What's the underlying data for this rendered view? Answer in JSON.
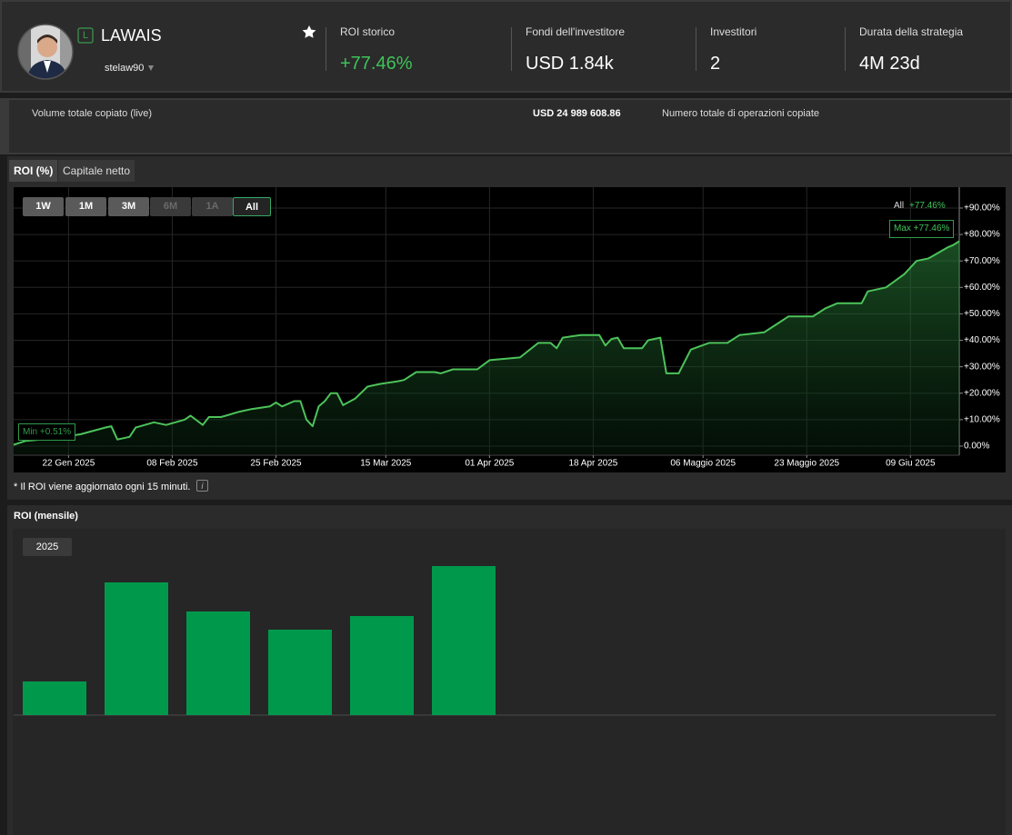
{
  "header": {
    "badge": "L",
    "name": "LAWAIS",
    "username": "stelaw90",
    "stats": [
      {
        "label": "ROI storico",
        "value": "+77.46%"
      },
      {
        "label": "Fondi dell'investitore",
        "value": "USD 1.84k"
      },
      {
        "label": "Investitori",
        "value": "2"
      },
      {
        "label": "Durata della strategia",
        "value": "4M 23d"
      }
    ]
  },
  "summary": {
    "copied_volume_label": "Volume totale copiato (live)",
    "copied_volume": "USD 24 989 608.86",
    "copied_trades_label": "Numero totale di operazioni copiate"
  },
  "tabs": [
    "ROI (%)",
    "Capitale netto"
  ],
  "ranges": [
    "1W",
    "1M",
    "3M",
    "6M",
    "1A",
    "All"
  ],
  "roi_note": "* Il ROI viene aggiornato ogni 15 minuti.",
  "monthly_title": "ROI (mensile)",
  "monthly_year": "2025",
  "chart_data": [
    {
      "type": "line",
      "range_label": "All",
      "range_value": "+77.46%",
      "max_label": "Max +77.46%",
      "min_label": "Min +0.51%",
      "x": [
        "2025-01-13",
        "2025-01-15",
        "2025-01-20",
        "2025-01-24",
        "2025-01-28",
        "2025-01-29",
        "2025-01-30",
        "2025-02-01",
        "2025-02-02",
        "2025-02-05",
        "2025-02-07",
        "2025-02-10",
        "2025-02-11",
        "2025-02-13",
        "2025-02-14",
        "2025-02-16",
        "2025-02-19",
        "2025-02-21",
        "2025-02-24",
        "2025-02-25",
        "2025-02-26",
        "2025-02-28",
        "2025-03-01",
        "2025-03-02",
        "2025-03-03",
        "2025-03-04",
        "2025-03-05",
        "2025-03-06",
        "2025-03-07",
        "2025-03-08",
        "2025-03-10",
        "2025-03-12",
        "2025-03-14",
        "2025-03-17",
        "2025-03-18",
        "2025-03-20",
        "2025-03-23",
        "2025-03-24",
        "2025-03-26",
        "2025-03-30",
        "2025-04-01",
        "2025-04-06",
        "2025-04-09",
        "2025-04-11",
        "2025-04-12",
        "2025-04-13",
        "2025-04-16",
        "2025-04-19",
        "2025-04-20",
        "2025-04-21",
        "2025-04-22",
        "2025-04-23",
        "2025-04-26",
        "2025-04-27",
        "2025-04-29",
        "2025-04-30",
        "2025-05-02",
        "2025-05-04",
        "2025-05-07",
        "2025-05-10",
        "2025-05-12",
        "2025-05-16",
        "2025-05-18",
        "2025-05-20",
        "2025-05-24",
        "2025-05-26",
        "2025-05-28",
        "2025-06-01",
        "2025-06-02",
        "2025-06-05",
        "2025-06-08",
        "2025-06-10",
        "2025-06-12",
        "2025-06-15",
        "2025-06-16",
        "2025-06-17"
      ],
      "series": [
        {
          "color": "#4cc35a",
          "values": [
            0.51,
            2,
            3,
            4.5,
            7,
            7.5,
            2.5,
            3.5,
            7,
            9,
            8,
            10,
            11.5,
            8,
            11,
            11,
            13,
            14,
            15,
            16.5,
            15,
            17,
            17,
            10,
            7.5,
            15,
            17,
            20,
            20,
            15.5,
            18,
            22.5,
            23.5,
            24.5,
            25,
            28,
            28,
            27.5,
            29,
            29,
            32.5,
            33.5,
            39,
            39,
            37,
            41,
            42,
            42,
            38,
            40.5,
            41,
            37,
            37,
            40,
            41,
            27.5,
            27.5,
            36.5,
            39,
            39,
            42,
            43,
            46,
            49,
            49,
            52,
            54,
            54,
            58.5,
            60,
            65,
            70,
            71,
            75,
            76,
            77.46
          ]
        }
      ],
      "xlim": [
        "2025-01-13",
        "2025-06-17"
      ],
      "xticks": [
        {
          "value": "2025-01-22",
          "label": "22 Gen 2025"
        },
        {
          "value": "2025-02-08",
          "label": "08 Feb 2025"
        },
        {
          "value": "2025-02-25",
          "label": "25 Feb 2025"
        },
        {
          "value": "2025-03-15",
          "label": "15 Mar 2025"
        },
        {
          "value": "2025-04-01",
          "label": "01 Apr 2025"
        },
        {
          "value": "2025-04-18",
          "label": "18 Apr 2025"
        },
        {
          "value": "2025-05-06",
          "label": "06 Maggio 2025"
        },
        {
          "value": "2025-05-23",
          "label": "23 Maggio 2025"
        },
        {
          "value": "2025-06-09",
          "label": "09 Giu 2025"
        }
      ],
      "ylim": [
        -3.1,
        97.2
      ],
      "yticks": [
        {
          "value": 0,
          "label": "0.00%"
        },
        {
          "value": 10,
          "label": "+10.00%"
        },
        {
          "value": 20,
          "label": "+20.00%"
        },
        {
          "value": 30,
          "label": "+30.00%"
        },
        {
          "value": 40,
          "label": "+40.00%"
        },
        {
          "value": 50,
          "label": "+50.00%"
        },
        {
          "value": 60,
          "label": "+60.00%"
        },
        {
          "value": 70,
          "label": "+70.00%"
        },
        {
          "value": 80,
          "label": "+80.00%"
        },
        {
          "value": 90,
          "label": "+90.00%"
        }
      ],
      "grid": true
    },
    {
      "type": "bar",
      "color": "#00994c",
      "values": [
        3.7,
        14.6,
        11.4,
        9.4,
        10.9,
        16.4,
        0,
        0,
        0,
        0,
        0,
        0
      ]
    }
  ]
}
